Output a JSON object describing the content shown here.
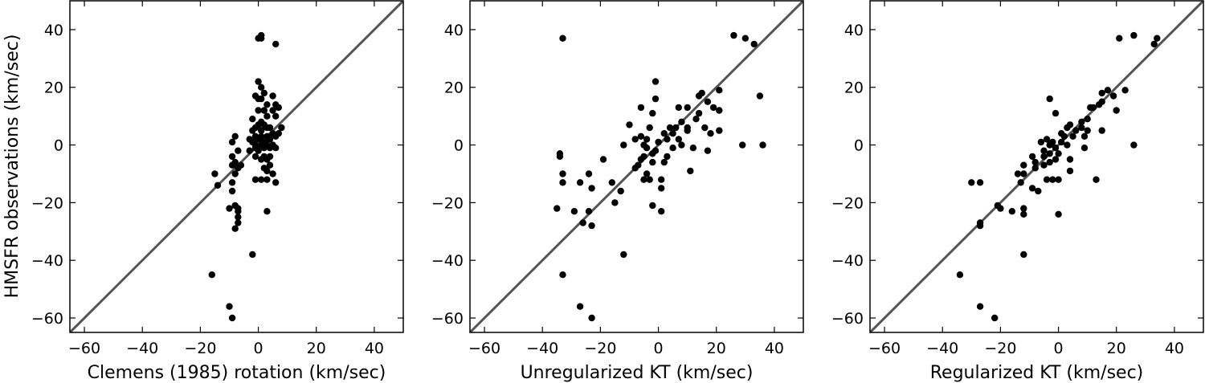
{
  "chart_data": [
    {
      "type": "scatter",
      "xlabel": "Clemens (1985) rotation (km/sec)",
      "ylabel": "HMSFR observations (km/sec)",
      "xlim": [
        -65,
        50
      ],
      "ylim": [
        -65,
        50
      ],
      "xticks": [
        -60,
        -40,
        -20,
        0,
        20,
        40
      ],
      "yticks": [
        -60,
        -40,
        -20,
        0,
        20,
        40
      ],
      "xtick_labels": [
        "−60",
        "−40",
        "−20",
        "0",
        "20",
        "40"
      ],
      "ytick_labels": [
        "−60",
        "−40",
        "−20",
        "0",
        "20",
        "40"
      ],
      "reference_line": "y = x",
      "line_color": "#555555",
      "point_color": "#000000",
      "grid": false,
      "points": [
        [
          1,
          38
        ],
        [
          0,
          37
        ],
        [
          1,
          37
        ],
        [
          6,
          35
        ],
        [
          0,
          22
        ],
        [
          1,
          20
        ],
        [
          2,
          18
        ],
        [
          -1,
          17
        ],
        [
          0,
          16
        ],
        [
          1,
          16
        ],
        [
          5,
          17
        ],
        [
          3,
          14
        ],
        [
          6,
          14
        ],
        [
          7,
          13
        ],
        [
          0,
          12
        ],
        [
          2,
          12
        ],
        [
          5,
          12
        ],
        [
          3,
          10
        ],
        [
          6,
          10
        ],
        [
          -2,
          9
        ],
        [
          1,
          8
        ],
        [
          0,
          7
        ],
        [
          2,
          7
        ],
        [
          -1,
          6
        ],
        [
          3,
          6
        ],
        [
          4,
          6
        ],
        [
          8,
          6
        ],
        [
          -2,
          5
        ],
        [
          1,
          5
        ],
        [
          5,
          4
        ],
        [
          7,
          4
        ],
        [
          -8,
          3
        ],
        [
          -1,
          3
        ],
        [
          1,
          3
        ],
        [
          3,
          3
        ],
        [
          6,
          3
        ],
        [
          -3,
          2
        ],
        [
          0,
          2
        ],
        [
          4,
          2
        ],
        [
          -9,
          1
        ],
        [
          -2,
          1
        ],
        [
          2,
          1
        ],
        [
          5,
          0
        ],
        [
          -1,
          0
        ],
        [
          1,
          0
        ],
        [
          3,
          0
        ],
        [
          -1,
          -1
        ],
        [
          2,
          -1
        ],
        [
          4,
          -1
        ],
        [
          6,
          -1
        ],
        [
          -7,
          -2
        ],
        [
          -3,
          -2
        ],
        [
          0,
          -2
        ],
        [
          -9,
          -4
        ],
        [
          -1,
          -4
        ],
        [
          2,
          -4
        ],
        [
          4,
          -4
        ],
        [
          1,
          -5
        ],
        [
          3,
          -5
        ],
        [
          -8,
          -6
        ],
        [
          -9,
          -7
        ],
        [
          -6,
          -7
        ],
        [
          4,
          -7
        ],
        [
          -7,
          -8
        ],
        [
          2,
          -8
        ],
        [
          3,
          -9
        ],
        [
          -8,
          -10
        ],
        [
          5,
          -10
        ],
        [
          -1,
          -12
        ],
        [
          1,
          -12
        ],
        [
          3,
          -12
        ],
        [
          -15,
          -10
        ],
        [
          -14,
          -14
        ],
        [
          -9,
          -13
        ],
        [
          6,
          -13
        ],
        [
          -9,
          -16
        ],
        [
          -8,
          -21
        ],
        [
          -10,
          -22
        ],
        [
          -7,
          -22
        ],
        [
          -7,
          -23
        ],
        [
          3,
          -23
        ],
        [
          -7,
          -25
        ],
        [
          -7,
          -27
        ],
        [
          -8,
          -29
        ],
        [
          -2,
          -38
        ],
        [
          -16,
          -45
        ],
        [
          -10,
          -56
        ],
        [
          -9,
          -60
        ]
      ]
    },
    {
      "type": "scatter",
      "xlabel": "Unregularized KT (km/sec)",
      "ylabel": "",
      "xlim": [
        -65,
        50
      ],
      "ylim": [
        -65,
        50
      ],
      "xticks": [
        -60,
        -40,
        -20,
        0,
        20,
        40
      ],
      "yticks": [
        -60,
        -40,
        -20,
        0,
        20,
        40
      ],
      "xtick_labels": [
        "−60",
        "−40",
        "−20",
        "0",
        "20",
        "40"
      ],
      "ytick_labels": [
        "−60",
        "−40",
        "−20",
        "0",
        "20",
        "40"
      ],
      "reference_line": "y = x",
      "line_color": "#555555",
      "point_color": "#000000",
      "grid": false,
      "points": [
        [
          -33,
          37
        ],
        [
          26,
          38
        ],
        [
          30,
          37
        ],
        [
          33,
          35
        ],
        [
          -1,
          22
        ],
        [
          21,
          19
        ],
        [
          15,
          18
        ],
        [
          14,
          17
        ],
        [
          35,
          17
        ],
        [
          -1,
          16
        ],
        [
          17,
          15
        ],
        [
          19,
          13
        ],
        [
          -6,
          13
        ],
        [
          7,
          13
        ],
        [
          10,
          13
        ],
        [
          21,
          12
        ],
        [
          -2,
          11
        ],
        [
          14,
          11
        ],
        [
          13,
          9
        ],
        [
          -10,
          7
        ],
        [
          8,
          8
        ],
        [
          10,
          6
        ],
        [
          16,
          6
        ],
        [
          -3,
          6
        ],
        [
          4,
          6
        ],
        [
          6,
          6
        ],
        [
          10,
          5
        ],
        [
          21,
          5
        ],
        [
          2,
          4
        ],
        [
          5,
          4
        ],
        [
          18,
          4
        ],
        [
          -8,
          2
        ],
        [
          -6,
          3
        ],
        [
          -4,
          2
        ],
        [
          3,
          2
        ],
        [
          7,
          2
        ],
        [
          0,
          1
        ],
        [
          -12,
          0
        ],
        [
          -5,
          0
        ],
        [
          8,
          0
        ],
        [
          29,
          0
        ],
        [
          36,
          0
        ],
        [
          -4,
          -1
        ],
        [
          5,
          -1
        ],
        [
          12,
          -1
        ],
        [
          -1,
          -2
        ],
        [
          17,
          -2
        ],
        [
          -2,
          -3
        ],
        [
          -5,
          -4
        ],
        [
          3,
          -4
        ],
        [
          -34,
          -3
        ],
        [
          -34,
          -4
        ],
        [
          -19,
          -5
        ],
        [
          -6,
          -5
        ],
        [
          -2,
          -6
        ],
        [
          2,
          -6
        ],
        [
          -7,
          -7
        ],
        [
          -8,
          -8
        ],
        [
          11,
          -9
        ],
        [
          -33,
          -10
        ],
        [
          -4,
          -10
        ],
        [
          -5,
          -12
        ],
        [
          -3,
          -12
        ],
        [
          1,
          -12
        ],
        [
          -33,
          -13
        ],
        [
          -24,
          -10
        ],
        [
          -27,
          -13
        ],
        [
          -16,
          -13
        ],
        [
          -23,
          -15
        ],
        [
          1,
          -15
        ],
        [
          -13,
          -16
        ],
        [
          -15,
          -20
        ],
        [
          -2,
          -21
        ],
        [
          -35,
          -22
        ],
        [
          -29,
          -23
        ],
        [
          -24,
          -23
        ],
        [
          1,
          -23
        ],
        [
          -26,
          -27
        ],
        [
          -23,
          -28
        ],
        [
          -12,
          -38
        ],
        [
          -33,
          -45
        ],
        [
          -27,
          -56
        ],
        [
          -23,
          -60
        ]
      ]
    },
    {
      "type": "scatter",
      "xlabel": "Regularized KT (km/sec)",
      "ylabel": "",
      "xlim": [
        -65,
        50
      ],
      "ylim": [
        -65,
        50
      ],
      "xticks": [
        -60,
        -40,
        -20,
        0,
        20,
        40
      ],
      "yticks": [
        -60,
        -40,
        -20,
        0,
        20,
        40
      ],
      "xtick_labels": [
        "−60",
        "−40",
        "−20",
        "0",
        "20",
        "40"
      ],
      "ytick_labels": [
        "−60",
        "−40",
        "−20",
        "0",
        "20",
        "40"
      ],
      "reference_line": "y = x",
      "line_color": "#555555",
      "point_color": "#000000",
      "grid": false,
      "points": [
        [
          26,
          38
        ],
        [
          34,
          37
        ],
        [
          21,
          37
        ],
        [
          33,
          35
        ],
        [
          23,
          19
        ],
        [
          17,
          19
        ],
        [
          15,
          18
        ],
        [
          19,
          17
        ],
        [
          -3,
          16
        ],
        [
          15,
          15
        ],
        [
          12,
          13
        ],
        [
          14,
          14
        ],
        [
          11,
          13
        ],
        [
          20,
          12
        ],
        [
          -1,
          11
        ],
        [
          10,
          9
        ],
        [
          8,
          8
        ],
        [
          4,
          7
        ],
        [
          8,
          6
        ],
        [
          3,
          6
        ],
        [
          6,
          5
        ],
        [
          15,
          5
        ],
        [
          10,
          5
        ],
        [
          1,
          4
        ],
        [
          2,
          3
        ],
        [
          -4,
          2
        ],
        [
          5,
          3
        ],
        [
          9,
          3
        ],
        [
          -6,
          1
        ],
        [
          -2,
          1
        ],
        [
          1,
          1
        ],
        [
          3,
          0
        ],
        [
          26,
          0
        ],
        [
          -3,
          0
        ],
        [
          -1,
          -1
        ],
        [
          9,
          -1
        ],
        [
          -5,
          -2
        ],
        [
          -3,
          -3
        ],
        [
          0,
          -3
        ],
        [
          -9,
          -4
        ],
        [
          -5,
          -4
        ],
        [
          -1,
          -5
        ],
        [
          4,
          -5
        ],
        [
          -8,
          -6
        ],
        [
          -3,
          -6
        ],
        [
          -5,
          -7
        ],
        [
          -12,
          -7
        ],
        [
          -8,
          -8
        ],
        [
          4,
          -9
        ],
        [
          -12,
          -10
        ],
        [
          -14,
          -10
        ],
        [
          -2,
          -12
        ],
        [
          -4,
          -12
        ],
        [
          13,
          -12
        ],
        [
          0,
          -12
        ],
        [
          -30,
          -13
        ],
        [
          -13,
          -13
        ],
        [
          -27,
          -13
        ],
        [
          -9,
          -15
        ],
        [
          -7,
          -16
        ],
        [
          -21,
          -21
        ],
        [
          -20,
          -22
        ],
        [
          -12,
          -22
        ],
        [
          -16,
          -23
        ],
        [
          -12,
          -24
        ],
        [
          0,
          -24
        ],
        [
          -27,
          -27
        ],
        [
          -27,
          -28
        ],
        [
          -12,
          -38
        ],
        [
          -34,
          -45
        ],
        [
          -27,
          -56
        ],
        [
          -22,
          -60
        ]
      ]
    }
  ]
}
